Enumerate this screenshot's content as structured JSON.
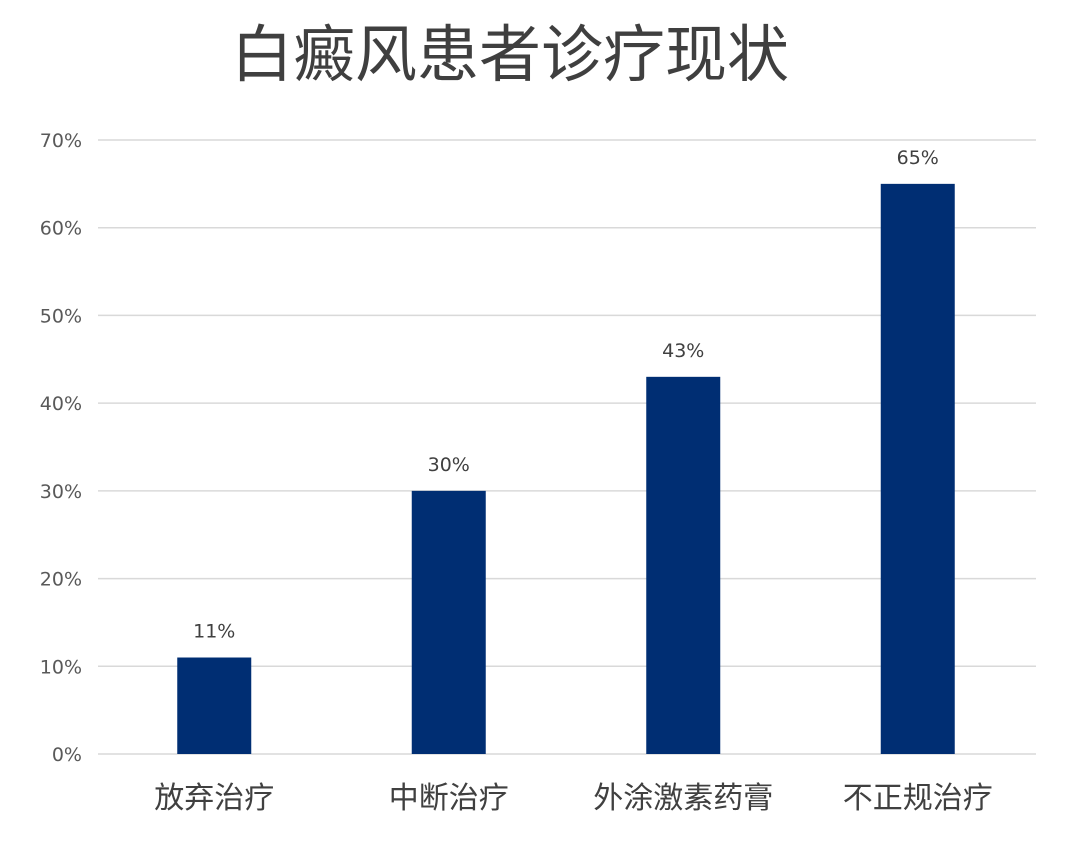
{
  "chart_data": {
    "type": "bar",
    "title": "白癜风患者诊疗现状",
    "categories": [
      "放弃治疗",
      "中断治疗",
      "外涂激素药膏",
      "不正规治疗"
    ],
    "values": [
      11,
      30,
      43,
      65
    ],
    "data_labels": [
      "11%",
      "30%",
      "43%",
      "65%"
    ],
    "ylim": [
      0,
      70
    ],
    "yticks": [
      0,
      10,
      20,
      30,
      40,
      50,
      60,
      70
    ],
    "ytick_labels": [
      "0%",
      "10%",
      "20%",
      "30%",
      "40%",
      "50%",
      "60%",
      "70%"
    ],
    "xlabel": "",
    "ylabel": "",
    "grid": true,
    "legend": "none",
    "bar_color": "#002E73"
  }
}
